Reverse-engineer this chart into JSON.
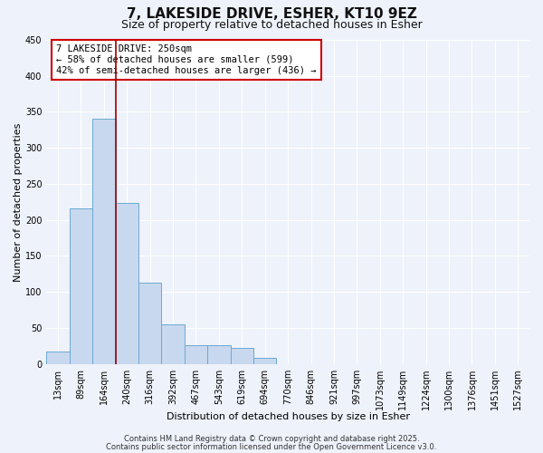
{
  "title": "7, LAKESIDE DRIVE, ESHER, KT10 9EZ",
  "subtitle": "Size of property relative to detached houses in Esher",
  "xlabel": "Distribution of detached houses by size in Esher",
  "ylabel": "Number of detached properties",
  "bar_labels": [
    "13sqm",
    "89sqm",
    "164sqm",
    "240sqm",
    "316sqm",
    "392sqm",
    "467sqm",
    "543sqm",
    "619sqm",
    "694sqm",
    "770sqm",
    "846sqm",
    "921sqm",
    "997sqm",
    "1073sqm",
    "1149sqm",
    "1224sqm",
    "1300sqm",
    "1376sqm",
    "1451sqm",
    "1527sqm"
  ],
  "bar_values": [
    17,
    216,
    340,
    224,
    113,
    55,
    26,
    26,
    22,
    8,
    0,
    0,
    0,
    0,
    0,
    0,
    0,
    0,
    0,
    0,
    0
  ],
  "bar_color": "#c8d8ee",
  "bar_edge_color": "#6aaad4",
  "vline_color": "#990000",
  "annotation_text": "7 LAKESIDE DRIVE: 250sqm\n← 58% of detached houses are smaller (599)\n42% of semi-detached houses are larger (436) →",
  "annotation_box_color": "#ffffff",
  "annotation_box_edge_color": "#cc0000",
  "ylim": [
    0,
    450
  ],
  "yticks": [
    0,
    50,
    100,
    150,
    200,
    250,
    300,
    350,
    400,
    450
  ],
  "footnote1": "Contains HM Land Registry data © Crown copyright and database right 2025.",
  "footnote2": "Contains public sector information licensed under the Open Government Licence v3.0.",
  "background_color": "#eef2fa",
  "grid_color": "#ffffff",
  "title_fontsize": 11,
  "subtitle_fontsize": 9,
  "axis_label_fontsize": 8,
  "tick_fontsize": 7,
  "annotation_fontsize": 7.5,
  "footnote_fontsize": 6
}
